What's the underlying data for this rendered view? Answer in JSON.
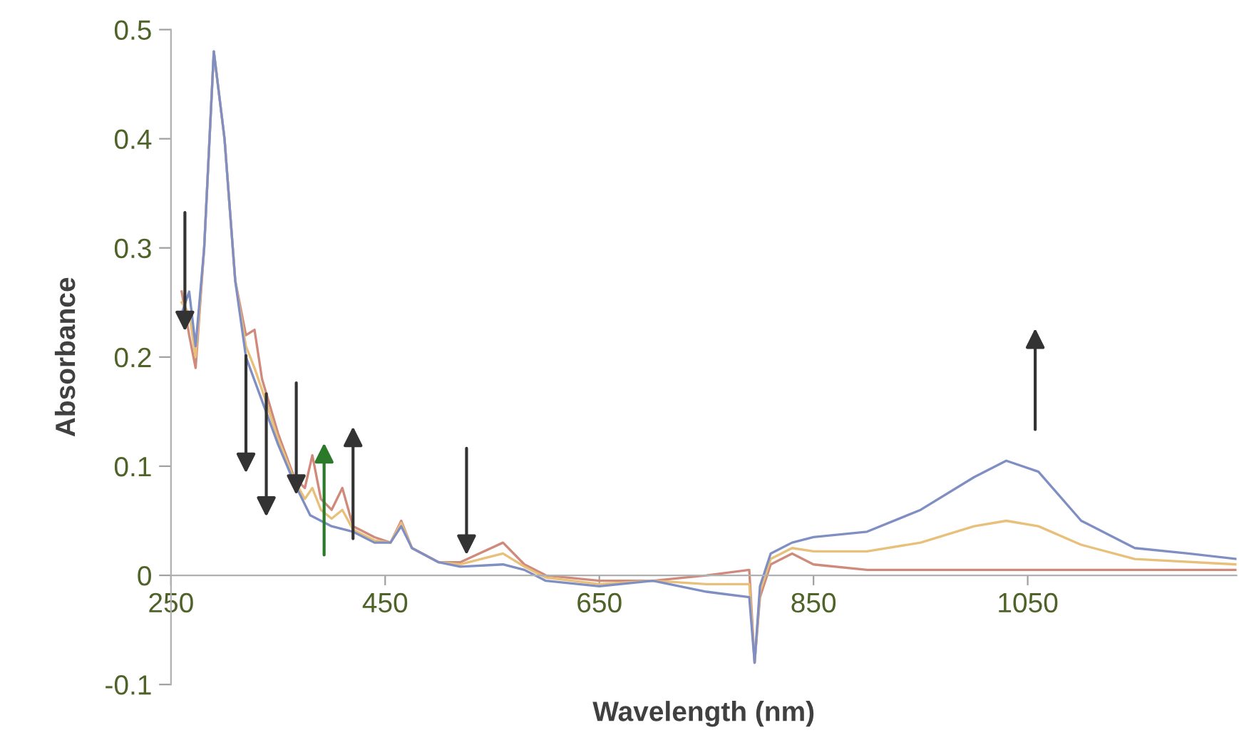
{
  "chart_data": {
    "type": "line",
    "xlabel": "Wavelength (nm)",
    "ylabel": "Absorbance",
    "xlim": [
      250,
      1245
    ],
    "xticks": [
      250,
      450,
      650,
      850,
      1050
    ],
    "ylim": [
      -0.1,
      0.5
    ],
    "yticks": [
      {
        "value": -0.1,
        "label": "-0.1"
      },
      0,
      0.1,
      0.2,
      0.3,
      0.4,
      0.5
    ],
    "grid": false,
    "legend": false,
    "marker": "none",
    "line_style": "solid",
    "series": [
      {
        "color": "#d08a7c",
        "x": [
          260,
          267,
          273,
          281,
          290,
          300,
          310,
          320,
          328,
          335,
          350,
          365,
          375,
          382,
          390,
          400,
          410,
          420,
          440,
          455,
          465,
          475,
          500,
          520,
          560,
          580,
          600,
          650,
          700,
          750,
          790,
          795,
          800,
          810,
          830,
          850,
          900,
          1000,
          1100,
          1245
        ],
        "values": [
          0.26,
          0.22,
          0.19,
          0.3,
          0.48,
          0.4,
          0.27,
          0.22,
          0.225,
          0.18,
          0.13,
          0.09,
          0.08,
          0.11,
          0.07,
          0.06,
          0.08,
          0.045,
          0.035,
          0.03,
          0.05,
          0.025,
          0.012,
          0.012,
          0.03,
          0.01,
          0,
          -0.005,
          -0.005,
          0,
          0.005,
          -0.08,
          -0.02,
          0.01,
          0.02,
          0.01,
          0.005,
          0.005,
          0.005,
          0.005
        ]
      },
      {
        "color": "#e8c07a",
        "x": [
          260,
          267,
          273,
          281,
          290,
          300,
          310,
          320,
          328,
          335,
          350,
          365,
          375,
          382,
          390,
          400,
          410,
          420,
          440,
          455,
          465,
          475,
          500,
          520,
          560,
          580,
          600,
          650,
          700,
          750,
          790,
          795,
          800,
          810,
          830,
          850,
          900,
          950,
          1000,
          1030,
          1060,
          1100,
          1150,
          1245
        ],
        "values": [
          0.25,
          0.24,
          0.2,
          0.3,
          0.48,
          0.4,
          0.27,
          0.21,
          0.19,
          0.17,
          0.125,
          0.088,
          0.07,
          0.08,
          0.06,
          0.052,
          0.06,
          0.042,
          0.032,
          0.03,
          0.048,
          0.025,
          0.012,
          0.01,
          0.02,
          0.008,
          -0.002,
          -0.008,
          -0.005,
          -0.008,
          -0.008,
          -0.08,
          -0.015,
          0.015,
          0.025,
          0.022,
          0.022,
          0.03,
          0.045,
          0.05,
          0.045,
          0.028,
          0.015,
          0.01
        ]
      },
      {
        "color": "#7f8fc4",
        "x": [
          260,
          267,
          273,
          281,
          290,
          300,
          310,
          320,
          335,
          350,
          365,
          380,
          400,
          420,
          440,
          455,
          465,
          475,
          500,
          520,
          560,
          580,
          600,
          650,
          700,
          750,
          790,
          795,
          800,
          810,
          830,
          850,
          900,
          950,
          1000,
          1030,
          1060,
          1100,
          1150,
          1200,
          1245
        ],
        "values": [
          0.24,
          0.26,
          0.21,
          0.3,
          0.48,
          0.4,
          0.27,
          0.2,
          0.16,
          0.12,
          0.085,
          0.055,
          0.045,
          0.04,
          0.03,
          0.03,
          0.045,
          0.025,
          0.012,
          0.008,
          0.01,
          0.005,
          -0.005,
          -0.01,
          -0.005,
          -0.015,
          -0.02,
          -0.08,
          -0.01,
          0.02,
          0.03,
          0.035,
          0.04,
          0.06,
          0.09,
          0.105,
          0.095,
          0.05,
          0.025,
          0.02,
          0.015
        ]
      }
    ]
  }
}
